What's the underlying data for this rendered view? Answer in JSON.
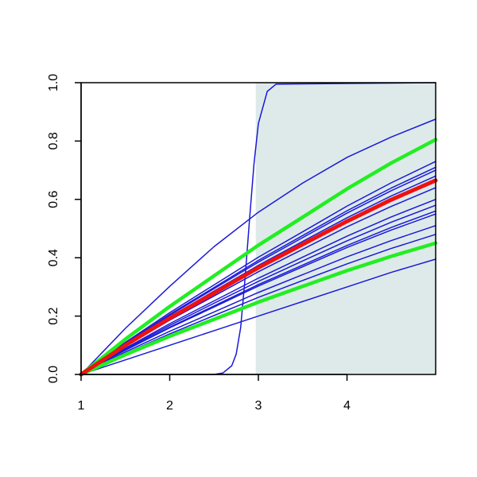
{
  "chart_data": {
    "type": "line",
    "x": [
      1,
      1.5,
      2,
      2.5,
      3,
      3.5,
      4,
      4.5,
      5
    ],
    "xlim": [
      1,
      5
    ],
    "ylim": [
      0,
      1
    ],
    "xticks": [
      1,
      2,
      3,
      4
    ],
    "yticks": [
      {
        "value": 0,
        "label": "0.0"
      },
      0.2,
      0.4,
      0.6,
      0.8,
      {
        "value": 1,
        "label": "1.0"
      }
    ],
    "shaded_region": {
      "x": [
        2.97,
        5
      ],
      "color": "#deeaea"
    },
    "series": [
      {
        "color": "#1a1ad6",
        "line_width": 1.5,
        "values": [
          0,
          0.158,
          0.302,
          0.438,
          0.556,
          0.656,
          0.744,
          0.814,
          0.875
        ]
      },
      {
        "color": "#1a1ad6",
        "line_width": 1.5,
        "values": [
          0,
          0.11,
          0.212,
          0.307,
          0.402,
          0.489,
          0.577,
          0.657,
          0.73
        ]
      },
      {
        "color": "#1a1ad6",
        "line_width": 1.5,
        "values": [
          0,
          0.107,
          0.206,
          0.298,
          0.391,
          0.476,
          0.561,
          0.639,
          0.71
        ]
      },
      {
        "color": "#1a1ad6",
        "line_width": 1.5,
        "values": [
          0,
          0.105,
          0.203,
          0.294,
          0.385,
          0.469,
          0.553,
          0.63,
          0.7
        ]
      },
      {
        "color": "#1a1ad6",
        "line_width": 1.5,
        "values": [
          0,
          0.102,
          0.197,
          0.286,
          0.374,
          0.456,
          0.537,
          0.612,
          0.68
        ]
      },
      {
        "color": "#1a1ad6",
        "line_width": 1.5,
        "values": [
          0,
          0.096,
          0.186,
          0.269,
          0.352,
          0.429,
          0.506,
          0.576,
          0.64
        ]
      },
      {
        "color": "#1a1ad6",
        "line_width": 1.5,
        "values": [
          0,
          0.09,
          0.174,
          0.252,
          0.33,
          0.402,
          0.474,
          0.54,
          0.6
        ]
      },
      {
        "color": "#1a1ad6",
        "line_width": 1.5,
        "values": [
          0,
          0.087,
          0.168,
          0.244,
          0.319,
          0.389,
          0.458,
          0.522,
          0.58
        ]
      },
      {
        "color": "#1a1ad6",
        "line_width": 1.5,
        "values": [
          0,
          0.084,
          0.162,
          0.235,
          0.308,
          0.375,
          0.442,
          0.504,
          0.56
        ]
      },
      {
        "color": "#1a1ad6",
        "line_width": 1.5,
        "values": [
          0,
          0.083,
          0.16,
          0.231,
          0.303,
          0.369,
          0.435,
          0.495,
          0.55
        ]
      },
      {
        "color": "#1a1ad6",
        "line_width": 1.5,
        "values": [
          0,
          0.077,
          0.148,
          0.214,
          0.281,
          0.342,
          0.403,
          0.459,
          0.51
        ]
      },
      {
        "color": "#1a1ad6",
        "line_width": 1.5,
        "values": [
          0,
          0.072,
          0.139,
          0.202,
          0.264,
          0.322,
          0.379,
          0.432,
          0.48
        ]
      },
      {
        "color": "#1a1ad6",
        "line_width": 1.5,
        "values": [
          0,
          0.05,
          0.1,
          0.15,
          0.2,
          0.25,
          0.3,
          0.35,
          0.395
        ]
      },
      {
        "color": "#1a1ad6",
        "line_width": 1.5,
        "x": [
          1,
          2.5,
          2.6,
          2.7,
          2.75,
          2.8,
          2.85,
          2.9,
          2.95,
          3.0,
          3.1,
          3.2,
          5
        ],
        "values": [
          0,
          0,
          0.005,
          0.03,
          0.07,
          0.16,
          0.33,
          0.53,
          0.72,
          0.86,
          0.97,
          0.995,
          1
        ]
      },
      {
        "color": "#22ee22",
        "line_width": 4.5,
        "values": [
          0,
          0.121,
          0.233,
          0.338,
          0.443,
          0.539,
          0.636,
          0.725,
          0.805
        ]
      },
      {
        "color": "#22ee22",
        "line_width": 4.5,
        "values": [
          0,
          0.068,
          0.131,
          0.189,
          0.248,
          0.302,
          0.356,
          0.405,
          0.45
        ]
      },
      {
        "color": "#ee1111",
        "line_width": 5,
        "values": [
          0,
          0.1,
          0.193,
          0.279,
          0.366,
          0.446,
          0.525,
          0.599,
          0.665
        ]
      }
    ]
  }
}
